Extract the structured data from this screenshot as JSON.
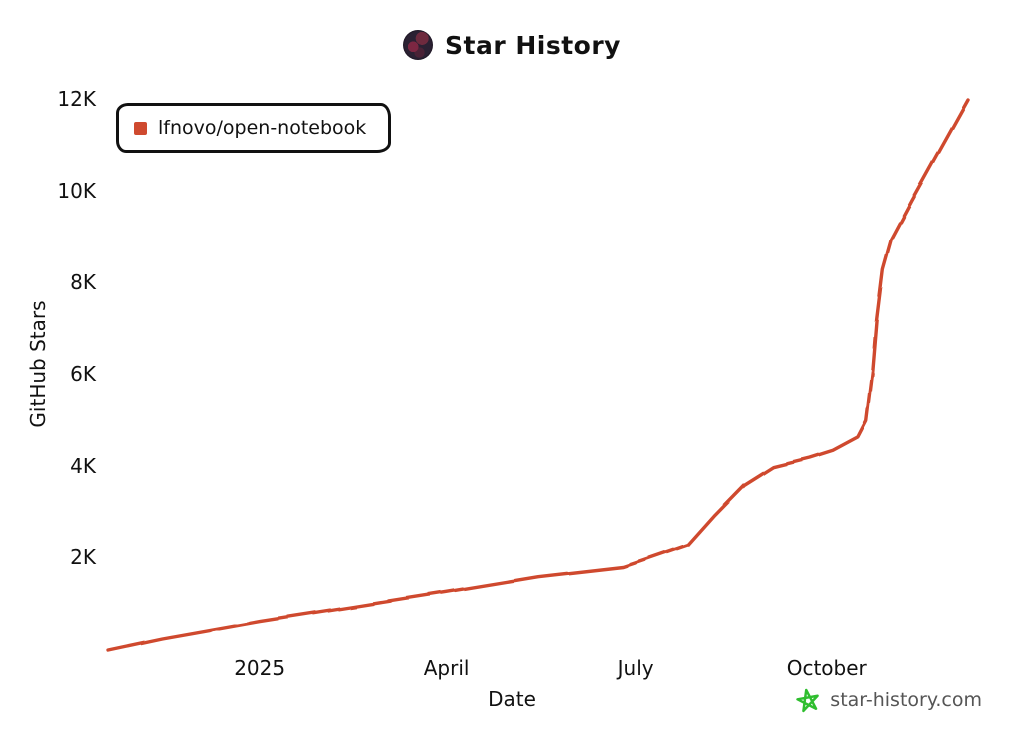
{
  "header": {
    "title": "Star History"
  },
  "legend": {
    "items": [
      {
        "label": "lfnovo/open-notebook",
        "color": "#cf4a2f"
      }
    ]
  },
  "footer": {
    "brand": "star-history.com",
    "star_icon_color": "#2fbe2f"
  },
  "chart_data": {
    "type": "line",
    "title": "Star History",
    "xlabel": "Date",
    "ylabel": "GitHub Stars",
    "xlim": [
      "2024-10-20",
      "2025-12-08"
    ],
    "ylim": [
      0,
      12000
    ],
    "grid": false,
    "legend_position": "top-left",
    "style": "hand-drawn xkcd-like",
    "axis_color": "#111111",
    "x_ticks": [
      {
        "label": "2025",
        "date": "2025-01-01"
      },
      {
        "label": "April",
        "date": "2025-04-01"
      },
      {
        "label": "July",
        "date": "2025-07-01"
      },
      {
        "label": "October",
        "date": "2025-10-01"
      }
    ],
    "y_ticks": [
      {
        "label": "2K",
        "value": 2000
      },
      {
        "label": "4K",
        "value": 4000
      },
      {
        "label": "6K",
        "value": 6000
      },
      {
        "label": "8K",
        "value": 8000
      },
      {
        "label": "10K",
        "value": 10000
      },
      {
        "label": "12K",
        "value": 12000
      }
    ],
    "series": [
      {
        "name": "lfnovo/open-notebook",
        "color": "#cf4a2f",
        "points": [
          [
            "2024-10-20",
            0
          ],
          [
            "2024-11-15",
            250
          ],
          [
            "2025-01-01",
            630
          ],
          [
            "2025-02-15",
            950
          ],
          [
            "2025-04-01",
            1270
          ],
          [
            "2025-05-15",
            1600
          ],
          [
            "2025-06-25",
            1810
          ],
          [
            "2025-07-01",
            1900
          ],
          [
            "2025-07-26",
            2290
          ],
          [
            "2025-08-08",
            2950
          ],
          [
            "2025-08-22",
            3600
          ],
          [
            "2025-09-05",
            4000
          ],
          [
            "2025-09-23",
            4200
          ],
          [
            "2025-10-04",
            4360
          ],
          [
            "2025-10-16",
            4650
          ],
          [
            "2025-10-20",
            5000
          ],
          [
            "2025-10-23",
            6100
          ],
          [
            "2025-10-25",
            7200
          ],
          [
            "2025-10-28",
            8300
          ],
          [
            "2025-11-01",
            8950
          ],
          [
            "2025-11-11",
            9800
          ],
          [
            "2025-11-22",
            10700
          ],
          [
            "2025-12-08",
            12000
          ]
        ]
      }
    ]
  }
}
